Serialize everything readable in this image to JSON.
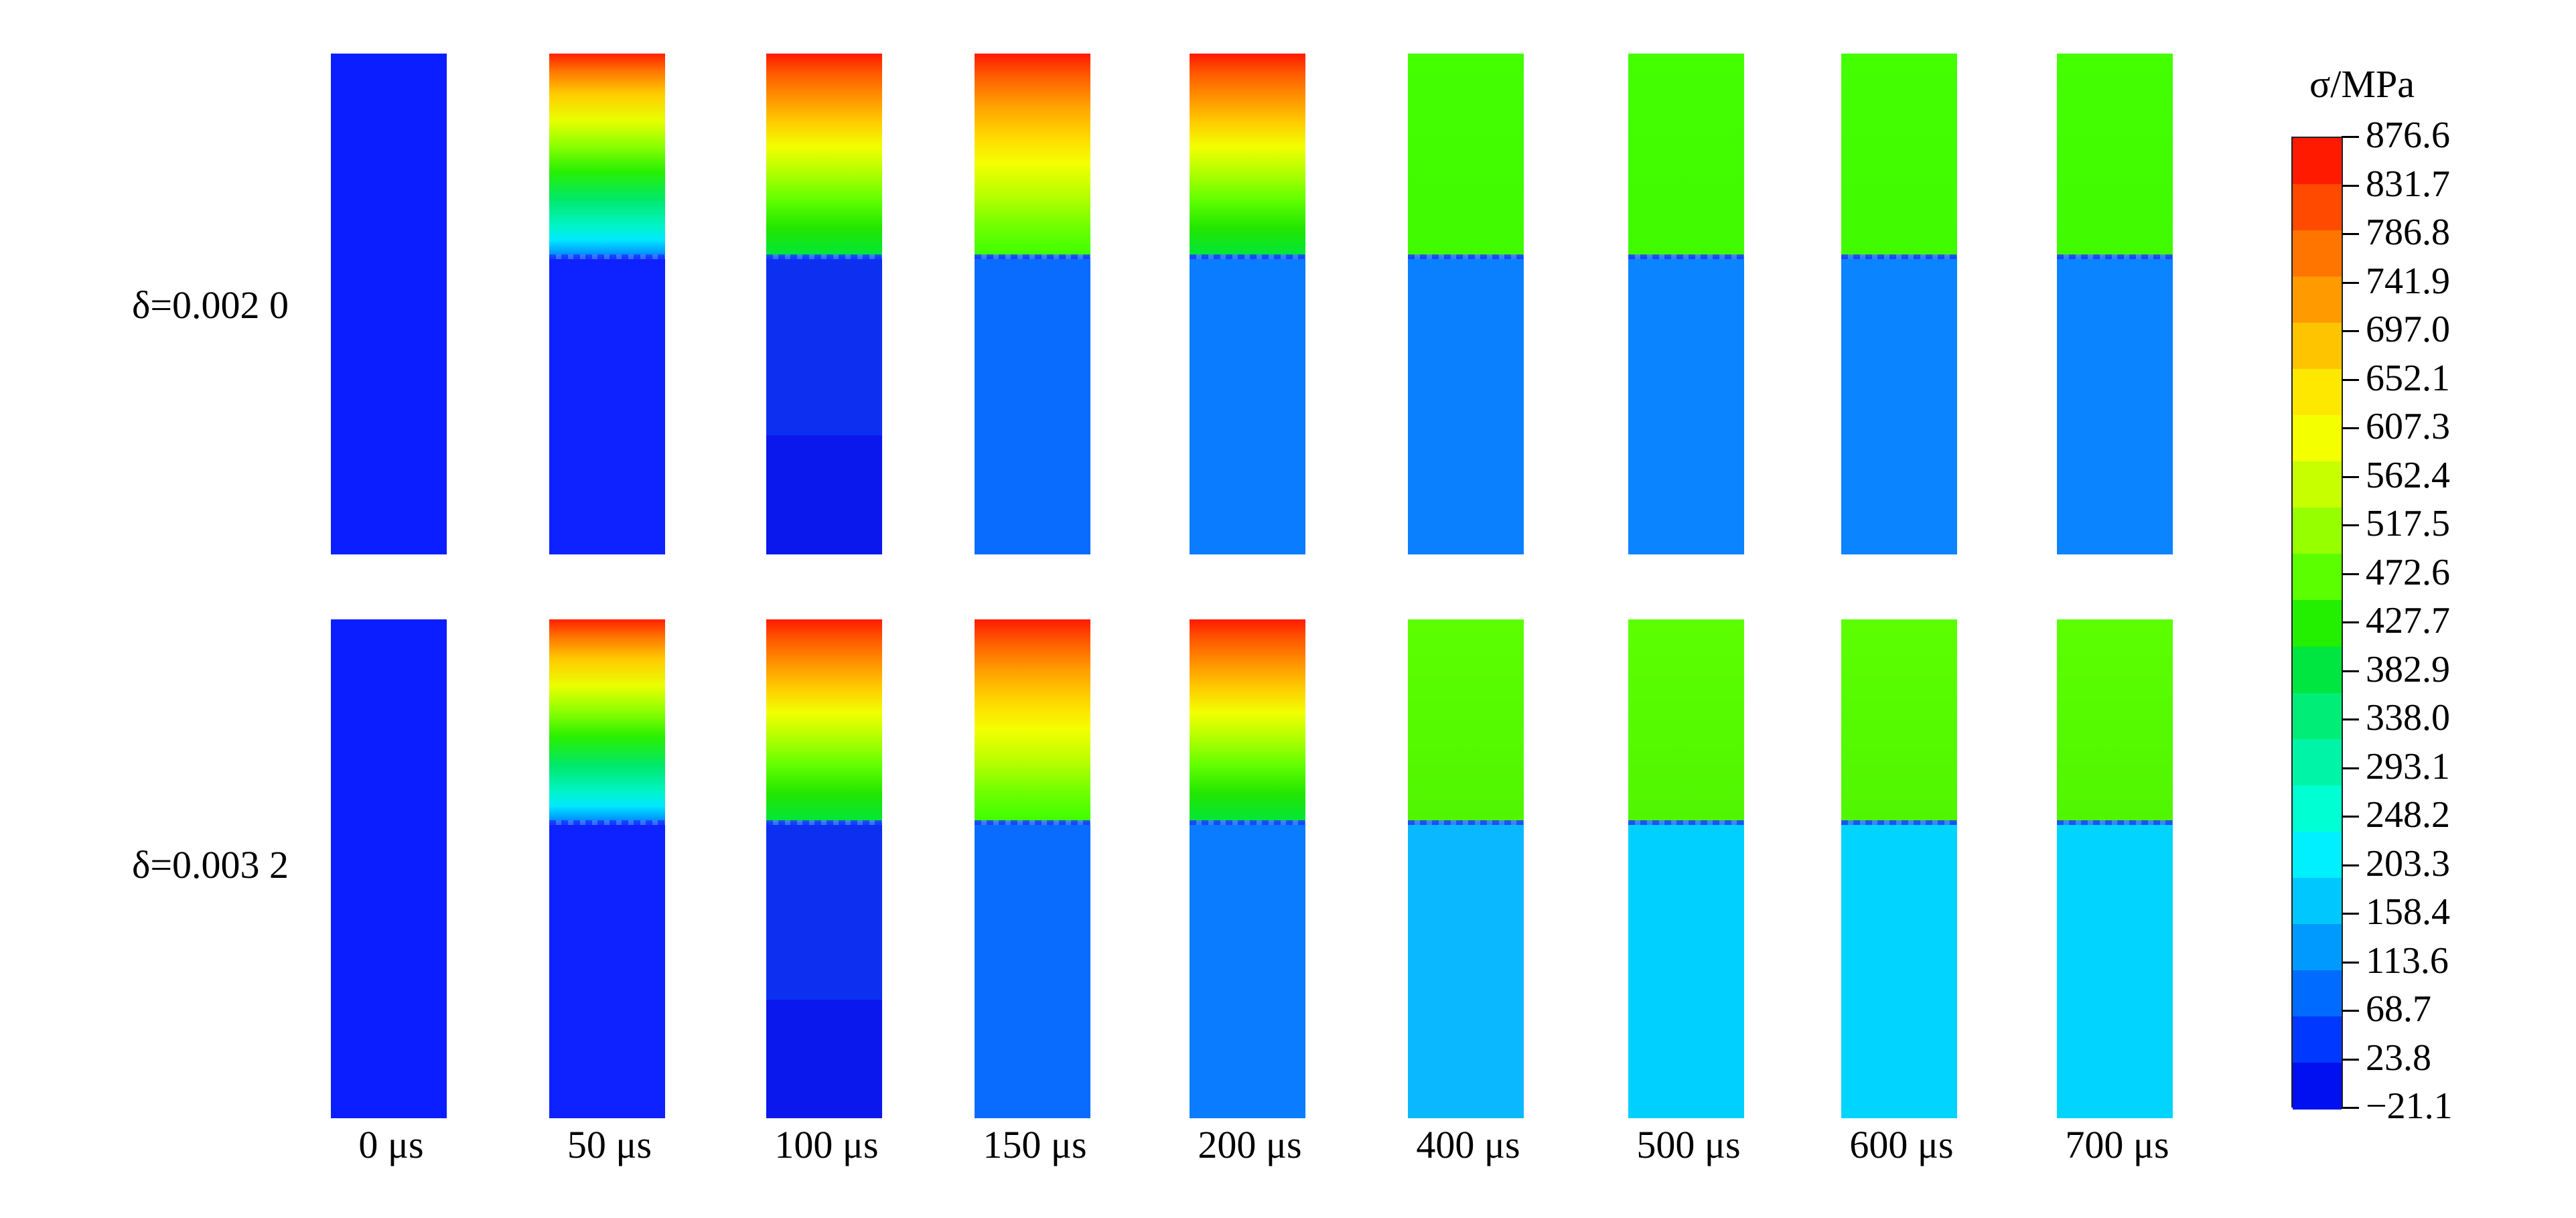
{
  "rows": [
    {
      "label": "δ=0.002 0"
    },
    {
      "label": "δ=0.003 2"
    }
  ],
  "times": [
    "0 μs",
    "50 μs",
    "100 μs",
    "150 μs",
    "200 μs",
    "400 μs",
    "500 μs",
    "600 μs",
    "700 μs"
  ],
  "colorbar": {
    "title": "σ/MPa",
    "values": [
      "876.6",
      "831.7",
      "786.8",
      "741.9",
      "697.0",
      "652.1",
      "607.3",
      "562.4",
      "517.5",
      "472.6",
      "427.7",
      "382.9",
      "338.0",
      "293.1",
      "248.2",
      "203.3",
      "158.4",
      "113.6",
      "68.7",
      "23.8",
      "−21.1"
    ],
    "colors": [
      "#ff1a00",
      "#ff4a00",
      "#ff7500",
      "#ff9a00",
      "#ffc400",
      "#ffe800",
      "#f4ff00",
      "#c8ff00",
      "#96ff00",
      "#5cff00",
      "#22f000",
      "#00e640",
      "#00ee78",
      "#00f4a8",
      "#00ffd2",
      "#00f0ff",
      "#00c8ff",
      "#009aff",
      "#006cff",
      "#0038ff",
      "#0010f0"
    ]
  }
}
